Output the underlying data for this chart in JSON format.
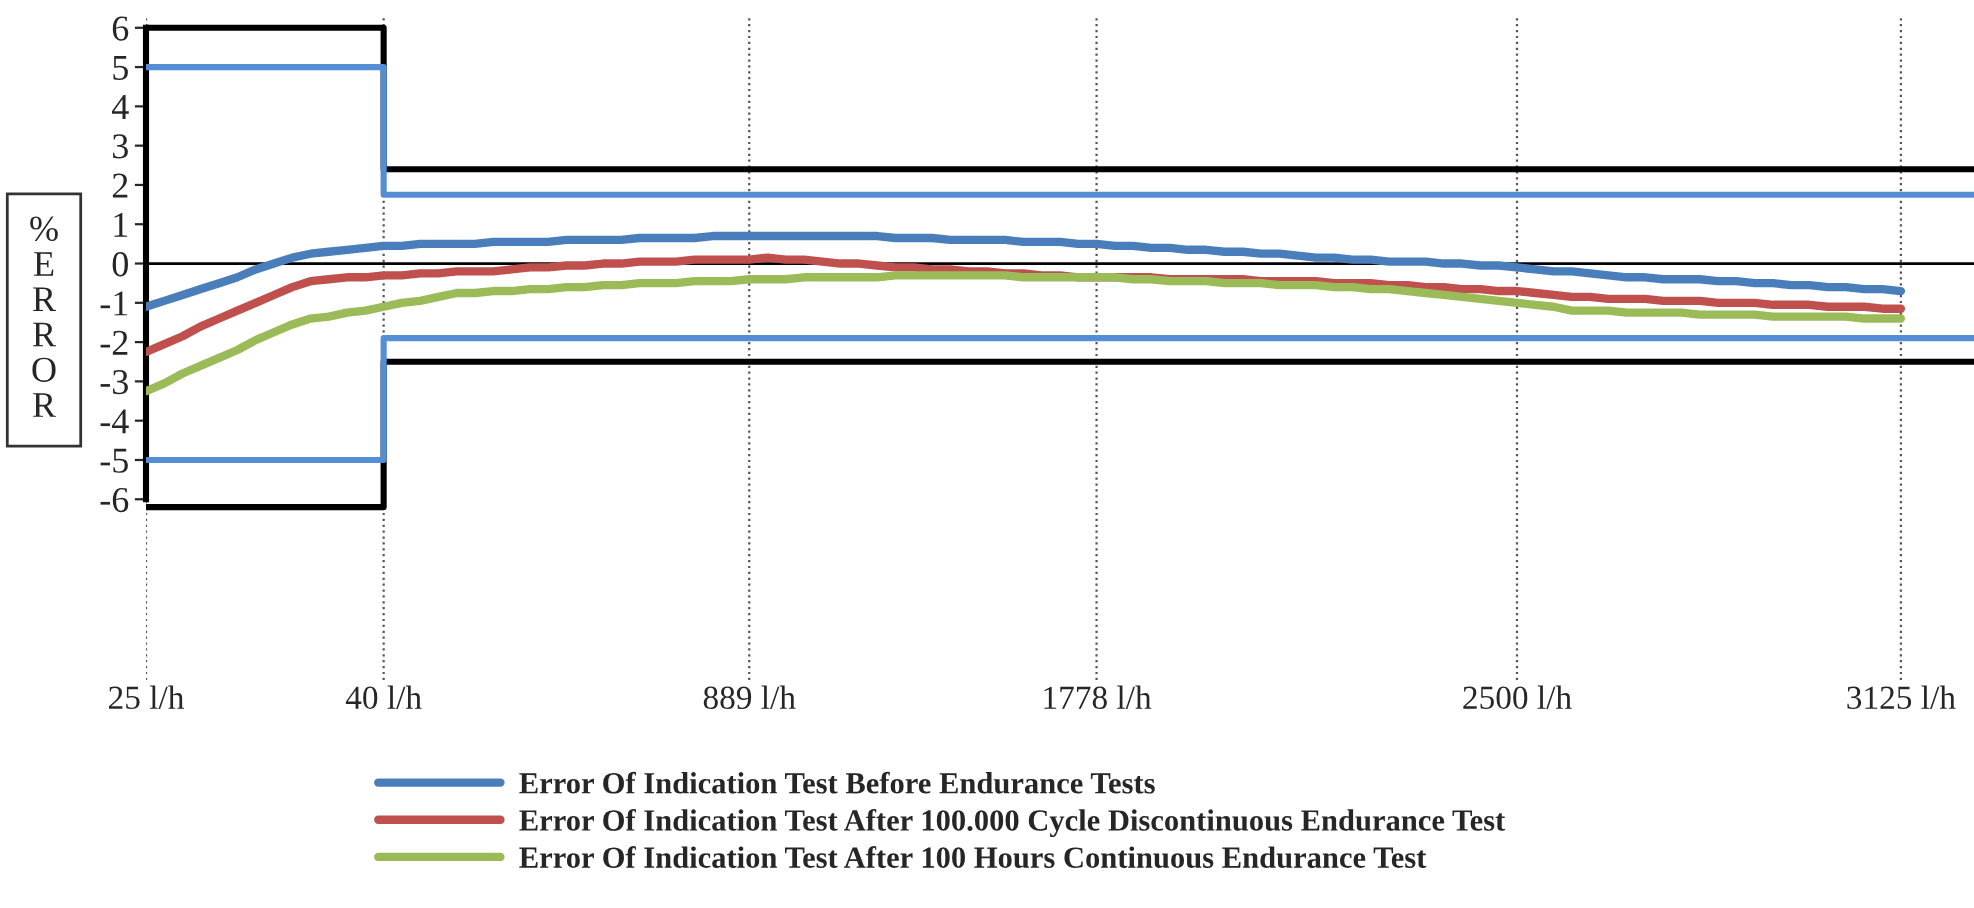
{
  "chart_data": {
    "type": "line",
    "ylabel": "%ERROR",
    "ylim": [
      -10.6,
      6.3
    ],
    "yticks": [
      -6,
      -5,
      -4,
      -3,
      -2,
      -1,
      0,
      1,
      2,
      3,
      4,
      5,
      6
    ],
    "categories": [
      "25 l/h",
      null,
      null,
      null,
      null,
      null,
      null,
      null,
      null,
      null,
      null,
      null,
      null,
      "40 l/h",
      null,
      null,
      null,
      null,
      null,
      null,
      null,
      null,
      null,
      null,
      null,
      null,
      null,
      null,
      null,
      null,
      null,
      null,
      null,
      "889 l/h",
      null,
      null,
      null,
      null,
      null,
      null,
      null,
      null,
      null,
      null,
      null,
      null,
      null,
      null,
      null,
      null,
      null,
      null,
      "1778 l/h",
      null,
      null,
      null,
      null,
      null,
      null,
      null,
      null,
      null,
      null,
      null,
      null,
      null,
      null,
      null,
      null,
      null,
      null,
      null,
      null,
      null,
      null,
      "2500 l/h",
      null,
      null,
      null,
      null,
      null,
      null,
      null,
      null,
      null,
      null,
      null,
      null,
      null,
      null,
      null,
      null,
      null,
      null,
      null,
      null,
      "3125 l/h",
      null,
      null,
      null,
      null
    ],
    "grid": "x",
    "legend": "bottom",
    "marker": "none",
    "line_style": "solid",
    "ref_lines": [
      {
        "axis": "y",
        "value": 0,
        "color": "#000000"
      }
    ],
    "series": [
      {
        "name": "Error Of Indication Test Before Endurance Tests",
        "color": "#4a7ebb",
        "values": [
          -1.1,
          -0.95,
          -0.8,
          -0.65,
          -0.5,
          -0.35,
          -0.15,
          0.0,
          0.15,
          0.25,
          0.3,
          0.35,
          0.4,
          0.45,
          0.45,
          0.5,
          0.5,
          0.5,
          0.5,
          0.55,
          0.55,
          0.55,
          0.55,
          0.6,
          0.6,
          0.6,
          0.6,
          0.65,
          0.65,
          0.65,
          0.65,
          0.7,
          0.7,
          0.7,
          0.7,
          0.7,
          0.7,
          0.7,
          0.7,
          0.7,
          0.7,
          0.65,
          0.65,
          0.65,
          0.6,
          0.6,
          0.6,
          0.6,
          0.55,
          0.55,
          0.55,
          0.5,
          0.5,
          0.45,
          0.45,
          0.4,
          0.4,
          0.35,
          0.35,
          0.3,
          0.3,
          0.25,
          0.25,
          0.2,
          0.15,
          0.15,
          0.1,
          0.1,
          0.05,
          0.05,
          0.05,
          0.0,
          0.0,
          -0.05,
          -0.05,
          -0.1,
          -0.15,
          -0.2,
          -0.2,
          -0.25,
          -0.3,
          -0.35,
          -0.35,
          -0.4,
          -0.4,
          -0.4,
          -0.45,
          -0.45,
          -0.5,
          -0.5,
          -0.55,
          -0.55,
          -0.6,
          -0.6,
          -0.65,
          -0.65,
          -0.7,
          null,
          null,
          null,
          null
        ]
      },
      {
        "name": "Error Of Indication Test After 100.000 Cycle Discontinuous Endurance Test",
        "color": "#c0504d",
        "values": [
          -2.25,
          -2.05,
          -1.85,
          -1.6,
          -1.4,
          -1.2,
          -1.0,
          -0.8,
          -0.6,
          -0.45,
          -0.4,
          -0.35,
          -0.35,
          -0.3,
          -0.3,
          -0.25,
          -0.25,
          -0.2,
          -0.2,
          -0.2,
          -0.15,
          -0.1,
          -0.1,
          -0.05,
          -0.05,
          0.0,
          0.0,
          0.05,
          0.05,
          0.05,
          0.1,
          0.1,
          0.1,
          0.1,
          0.15,
          0.1,
          0.1,
          0.05,
          0.0,
          0.0,
          -0.05,
          -0.1,
          -0.1,
          -0.15,
          -0.15,
          -0.2,
          -0.2,
          -0.25,
          -0.25,
          -0.3,
          -0.3,
          -0.35,
          -0.35,
          -0.35,
          -0.35,
          -0.35,
          -0.4,
          -0.4,
          -0.4,
          -0.4,
          -0.4,
          -0.45,
          -0.45,
          -0.45,
          -0.45,
          -0.5,
          -0.5,
          -0.5,
          -0.55,
          -0.55,
          -0.6,
          -0.6,
          -0.65,
          -0.65,
          -0.7,
          -0.7,
          -0.75,
          -0.8,
          -0.85,
          -0.85,
          -0.9,
          -0.9,
          -0.9,
          -0.95,
          -0.95,
          -0.95,
          -1.0,
          -1.0,
          -1.0,
          -1.05,
          -1.05,
          -1.05,
          -1.1,
          -1.1,
          -1.1,
          -1.15,
          -1.15,
          null,
          null,
          null,
          null
        ]
      },
      {
        "name": "Error Of Indication Test After 100 Hours Continuous Endurance Test",
        "color": "#9bbb59",
        "values": [
          -3.25,
          -3.05,
          -2.8,
          -2.6,
          -2.4,
          -2.2,
          -1.95,
          -1.75,
          -1.55,
          -1.4,
          -1.35,
          -1.25,
          -1.2,
          -1.1,
          -1.0,
          -0.95,
          -0.85,
          -0.75,
          -0.75,
          -0.7,
          -0.7,
          -0.65,
          -0.65,
          -0.6,
          -0.6,
          -0.55,
          -0.55,
          -0.5,
          -0.5,
          -0.5,
          -0.45,
          -0.45,
          -0.45,
          -0.4,
          -0.4,
          -0.4,
          -0.35,
          -0.35,
          -0.35,
          -0.35,
          -0.35,
          -0.3,
          -0.3,
          -0.3,
          -0.3,
          -0.3,
          -0.3,
          -0.3,
          -0.35,
          -0.35,
          -0.35,
          -0.35,
          -0.35,
          -0.35,
          -0.4,
          -0.4,
          -0.45,
          -0.45,
          -0.45,
          -0.5,
          -0.5,
          -0.5,
          -0.55,
          -0.55,
          -0.55,
          -0.6,
          -0.6,
          -0.65,
          -0.65,
          -0.7,
          -0.75,
          -0.8,
          -0.85,
          -0.9,
          -0.95,
          -1.0,
          -1.05,
          -1.1,
          -1.2,
          -1.2,
          -1.2,
          -1.25,
          -1.25,
          -1.25,
          -1.25,
          -1.3,
          -1.3,
          -1.3,
          -1.3,
          -1.35,
          -1.35,
          -1.35,
          -1.35,
          -1.35,
          -1.4,
          -1.4,
          -1.4,
          null,
          null,
          null,
          null
        ]
      },
      {
        "type": "step",
        "color": "#000000",
        "values": [
          6,
          6,
          6,
          6,
          6,
          6,
          6,
          6,
          6,
          6,
          6,
          6,
          6,
          2.4,
          2.4,
          2.4,
          2.4,
          2.4,
          2.4,
          2.4,
          2.4,
          2.4,
          2.4,
          2.4,
          2.4,
          2.4,
          2.4,
          2.4,
          2.4,
          2.4,
          2.4,
          2.4,
          2.4,
          2.4,
          2.4,
          2.4,
          2.4,
          2.4,
          2.4,
          2.4,
          2.4,
          2.4,
          2.4,
          2.4,
          2.4,
          2.4,
          2.4,
          2.4,
          2.4,
          2.4,
          2.4,
          2.4,
          2.4,
          2.4,
          2.4,
          2.4,
          2.4,
          2.4,
          2.4,
          2.4,
          2.4,
          2.4,
          2.4,
          2.4,
          2.4,
          2.4,
          2.4,
          2.4,
          2.4,
          2.4,
          2.4,
          2.4,
          2.4,
          2.4,
          2.4,
          2.4,
          2.4,
          2.4,
          2.4,
          2.4,
          2.4,
          2.4,
          2.4,
          2.4,
          2.4,
          2.4,
          2.4,
          2.4,
          2.4,
          2.4,
          2.4,
          2.4,
          2.4,
          2.4,
          2.4,
          2.4,
          2.4,
          2.4,
          2.4,
          2.4,
          2.4
        ]
      },
      {
        "type": "step",
        "color": "#000000",
        "values": [
          -6.2,
          -6.2,
          -6.2,
          -6.2,
          -6.2,
          -6.2,
          -6.2,
          -6.2,
          -6.2,
          -6.2,
          -6.2,
          -6.2,
          -6.2,
          -2.5,
          -2.5,
          -2.5,
          -2.5,
          -2.5,
          -2.5,
          -2.5,
          -2.5,
          -2.5,
          -2.5,
          -2.5,
          -2.5,
          -2.5,
          -2.5,
          -2.5,
          -2.5,
          -2.5,
          -2.5,
          -2.5,
          -2.5,
          -2.5,
          -2.5,
          -2.5,
          -2.5,
          -2.5,
          -2.5,
          -2.5,
          -2.5,
          -2.5,
          -2.5,
          -2.5,
          -2.5,
          -2.5,
          -2.5,
          -2.5,
          -2.5,
          -2.5,
          -2.5,
          -2.5,
          -2.5,
          -2.5,
          -2.5,
          -2.5,
          -2.5,
          -2.5,
          -2.5,
          -2.5,
          -2.5,
          -2.5,
          -2.5,
          -2.5,
          -2.5,
          -2.5,
          -2.5,
          -2.5,
          -2.5,
          -2.5,
          -2.5,
          -2.5,
          -2.5,
          -2.5,
          -2.5,
          -2.5,
          -2.5,
          -2.5,
          -2.5,
          -2.5,
          -2.5,
          -2.5,
          -2.5,
          -2.5,
          -2.5,
          -2.5,
          -2.5,
          -2.5,
          -2.5,
          -2.5,
          -2.5,
          -2.5,
          -2.5,
          -2.5,
          -2.5,
          -2.5,
          -2.5,
          -2.5,
          -2.5,
          -2.5,
          -2.5
        ]
      },
      {
        "type": "step",
        "color": "#558ed5",
        "values": [
          5,
          5,
          5,
          5,
          5,
          5,
          5,
          5,
          5,
          5,
          5,
          5,
          5,
          1.75,
          1.75,
          1.75,
          1.75,
          1.75,
          1.75,
          1.75,
          1.75,
          1.75,
          1.75,
          1.75,
          1.75,
          1.75,
          1.75,
          1.75,
          1.75,
          1.75,
          1.75,
          1.75,
          1.75,
          1.75,
          1.75,
          1.75,
          1.75,
          1.75,
          1.75,
          1.75,
          1.75,
          1.75,
          1.75,
          1.75,
          1.75,
          1.75,
          1.75,
          1.75,
          1.75,
          1.75,
          1.75,
          1.75,
          1.75,
          1.75,
          1.75,
          1.75,
          1.75,
          1.75,
          1.75,
          1.75,
          1.75,
          1.75,
          1.75,
          1.75,
          1.75,
          1.75,
          1.75,
          1.75,
          1.75,
          1.75,
          1.75,
          1.75,
          1.75,
          1.75,
          1.75,
          1.75,
          1.75,
          1.75,
          1.75,
          1.75,
          1.75,
          1.75,
          1.75,
          1.75,
          1.75,
          1.75,
          1.75,
          1.75,
          1.75,
          1.75,
          1.75,
          1.75,
          1.75,
          1.75,
          1.75,
          1.75,
          1.75,
          1.75,
          1.75,
          1.75,
          1.75
        ]
      },
      {
        "type": "step",
        "color": "#558ed5",
        "values": [
          -5,
          -5,
          -5,
          -5,
          -5,
          -5,
          -5,
          -5,
          -5,
          -5,
          -5,
          -5,
          -5,
          -1.9,
          -1.9,
          -1.9,
          -1.9,
          -1.9,
          -1.9,
          -1.9,
          -1.9,
          -1.9,
          -1.9,
          -1.9,
          -1.9,
          -1.9,
          -1.9,
          -1.9,
          -1.9,
          -1.9,
          -1.9,
          -1.9,
          -1.9,
          -1.9,
          -1.9,
          -1.9,
          -1.9,
          -1.9,
          -1.9,
          -1.9,
          -1.9,
          -1.9,
          -1.9,
          -1.9,
          -1.9,
          -1.9,
          -1.9,
          -1.9,
          -1.9,
          -1.9,
          -1.9,
          -1.9,
          -1.9,
          -1.9,
          -1.9,
          -1.9,
          -1.9,
          -1.9,
          -1.9,
          -1.9,
          -1.9,
          -1.9,
          -1.9,
          -1.9,
          -1.9,
          -1.9,
          -1.9,
          -1.9,
          -1.9,
          -1.9,
          -1.9,
          -1.9,
          -1.9,
          -1.9,
          -1.9,
          -1.9,
          -1.9,
          -1.9,
          -1.9,
          -1.9,
          -1.9,
          -1.9,
          -1.9,
          -1.9,
          -1.9,
          -1.9,
          -1.9,
          -1.9,
          -1.9,
          -1.9,
          -1.9,
          -1.9,
          -1.9,
          -1.9,
          -1.9,
          -1.9,
          -1.9,
          -1.9,
          -1.9,
          -1.9,
          -1.9
        ]
      }
    ]
  }
}
